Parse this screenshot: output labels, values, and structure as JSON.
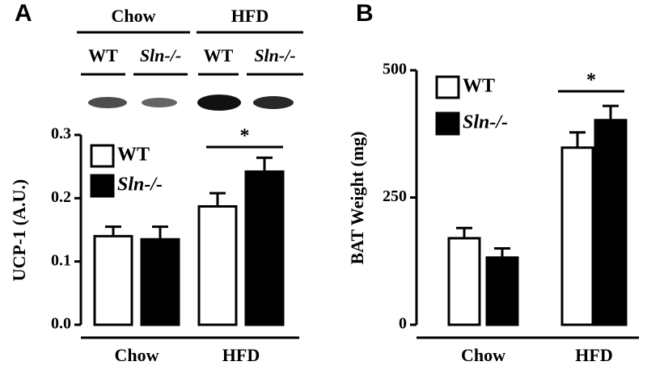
{
  "blot": {
    "groups": [
      "Chow",
      "HFD"
    ],
    "lanes": [
      "WT",
      "Sln-/-",
      "WT",
      "Sln-/-"
    ]
  },
  "chart_data": [
    {
      "type": "bar",
      "panel_label": "A",
      "y_label": "UCP-1 (A.U.)",
      "annotation": "*",
      "categories": [
        "Chow",
        "HFD"
      ],
      "series": [
        {
          "name": "WT",
          "color": "#ffffff",
          "values": [
            0.14,
            0.187
          ],
          "errors": [
            0.015,
            0.021
          ]
        },
        {
          "name": "Sln-/-",
          "color": "#000000",
          "values": [
            0.135,
            0.242
          ],
          "errors": [
            0.02,
            0.022
          ]
        }
      ],
      "ylim": [
        0,
        0.3
      ],
      "yticks": [
        {
          "value": 0,
          "label": "0.0"
        },
        0.1,
        0.2,
        0.3
      ]
    },
    {
      "type": "bar",
      "panel_label": "B",
      "y_label": "BAT Weight (mg)",
      "annotation": "*",
      "categories": [
        "Chow",
        "HFD"
      ],
      "series": [
        {
          "name": "WT",
          "color": "#ffffff",
          "values": [
            170,
            348
          ],
          "errors": [
            20,
            30
          ]
        },
        {
          "name": "Sln-/-",
          "color": "#000000",
          "values": [
            132,
            402
          ],
          "errors": [
            18,
            28
          ]
        }
      ],
      "ylim": [
        0,
        500
      ],
      "yticks": [
        0,
        250,
        500
      ]
    }
  ]
}
